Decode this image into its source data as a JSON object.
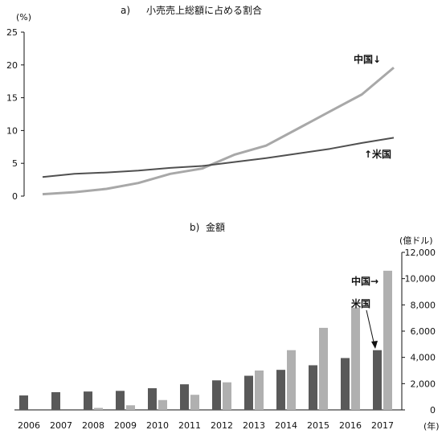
{
  "chart_data": [
    {
      "type": "line",
      "panel_label": "a)",
      "title": "小売売上総額に占める割合",
      "ylabel": "(%)",
      "ylim": [
        0,
        25
      ],
      "yticks": [
        0,
        5,
        10,
        15,
        20,
        25
      ],
      "x": [
        2006,
        2007,
        2008,
        2009,
        2010,
        2011,
        2012,
        2013,
        2014,
        2015,
        2016,
        2017
      ],
      "series": [
        {
          "name": "中国↓",
          "color": "#a8a8a8",
          "values": [
            0.3,
            0.6,
            1.1,
            2.0,
            3.4,
            4.2,
            6.3,
            7.7,
            10.3,
            12.9,
            15.5,
            19.6
          ]
        },
        {
          "name": "↑米国",
          "color": "#505050",
          "values": [
            2.9,
            3.4,
            3.6,
            3.9,
            4.3,
            4.6,
            5.2,
            5.8,
            6.5,
            7.2,
            8.1,
            8.9
          ]
        }
      ],
      "grid": false
    },
    {
      "type": "bar",
      "panel_label": "b)",
      "title": "金額",
      "ylabel": "(億ドル)",
      "xlabel": "(年)",
      "ylim": [
        0,
        12000
      ],
      "yticks": [
        0,
        2000,
        4000,
        6000,
        8000,
        10000,
        12000
      ],
      "ytick_labels": [
        "0",
        "2,000",
        "4,000",
        "6,000",
        "8,000",
        "10,000",
        "12,000"
      ],
      "categories": [
        "2006",
        "2007",
        "2008",
        "2009",
        "2010",
        "2011",
        "2012",
        "2013",
        "2014",
        "2015",
        "2016",
        "2017"
      ],
      "series": [
        {
          "name": "米国",
          "color": "#595959",
          "values": [
            1100,
            1350,
            1400,
            1450,
            1650,
            1950,
            2250,
            2600,
            3050,
            3400,
            3950,
            4550
          ]
        },
        {
          "name": "中国",
          "color": "#b0b0b0",
          "values": [
            0,
            0,
            150,
            350,
            750,
            1150,
            2100,
            3000,
            4550,
            6250,
            7800,
            10600
          ]
        }
      ],
      "grid": false,
      "axis_side": "right"
    }
  ]
}
